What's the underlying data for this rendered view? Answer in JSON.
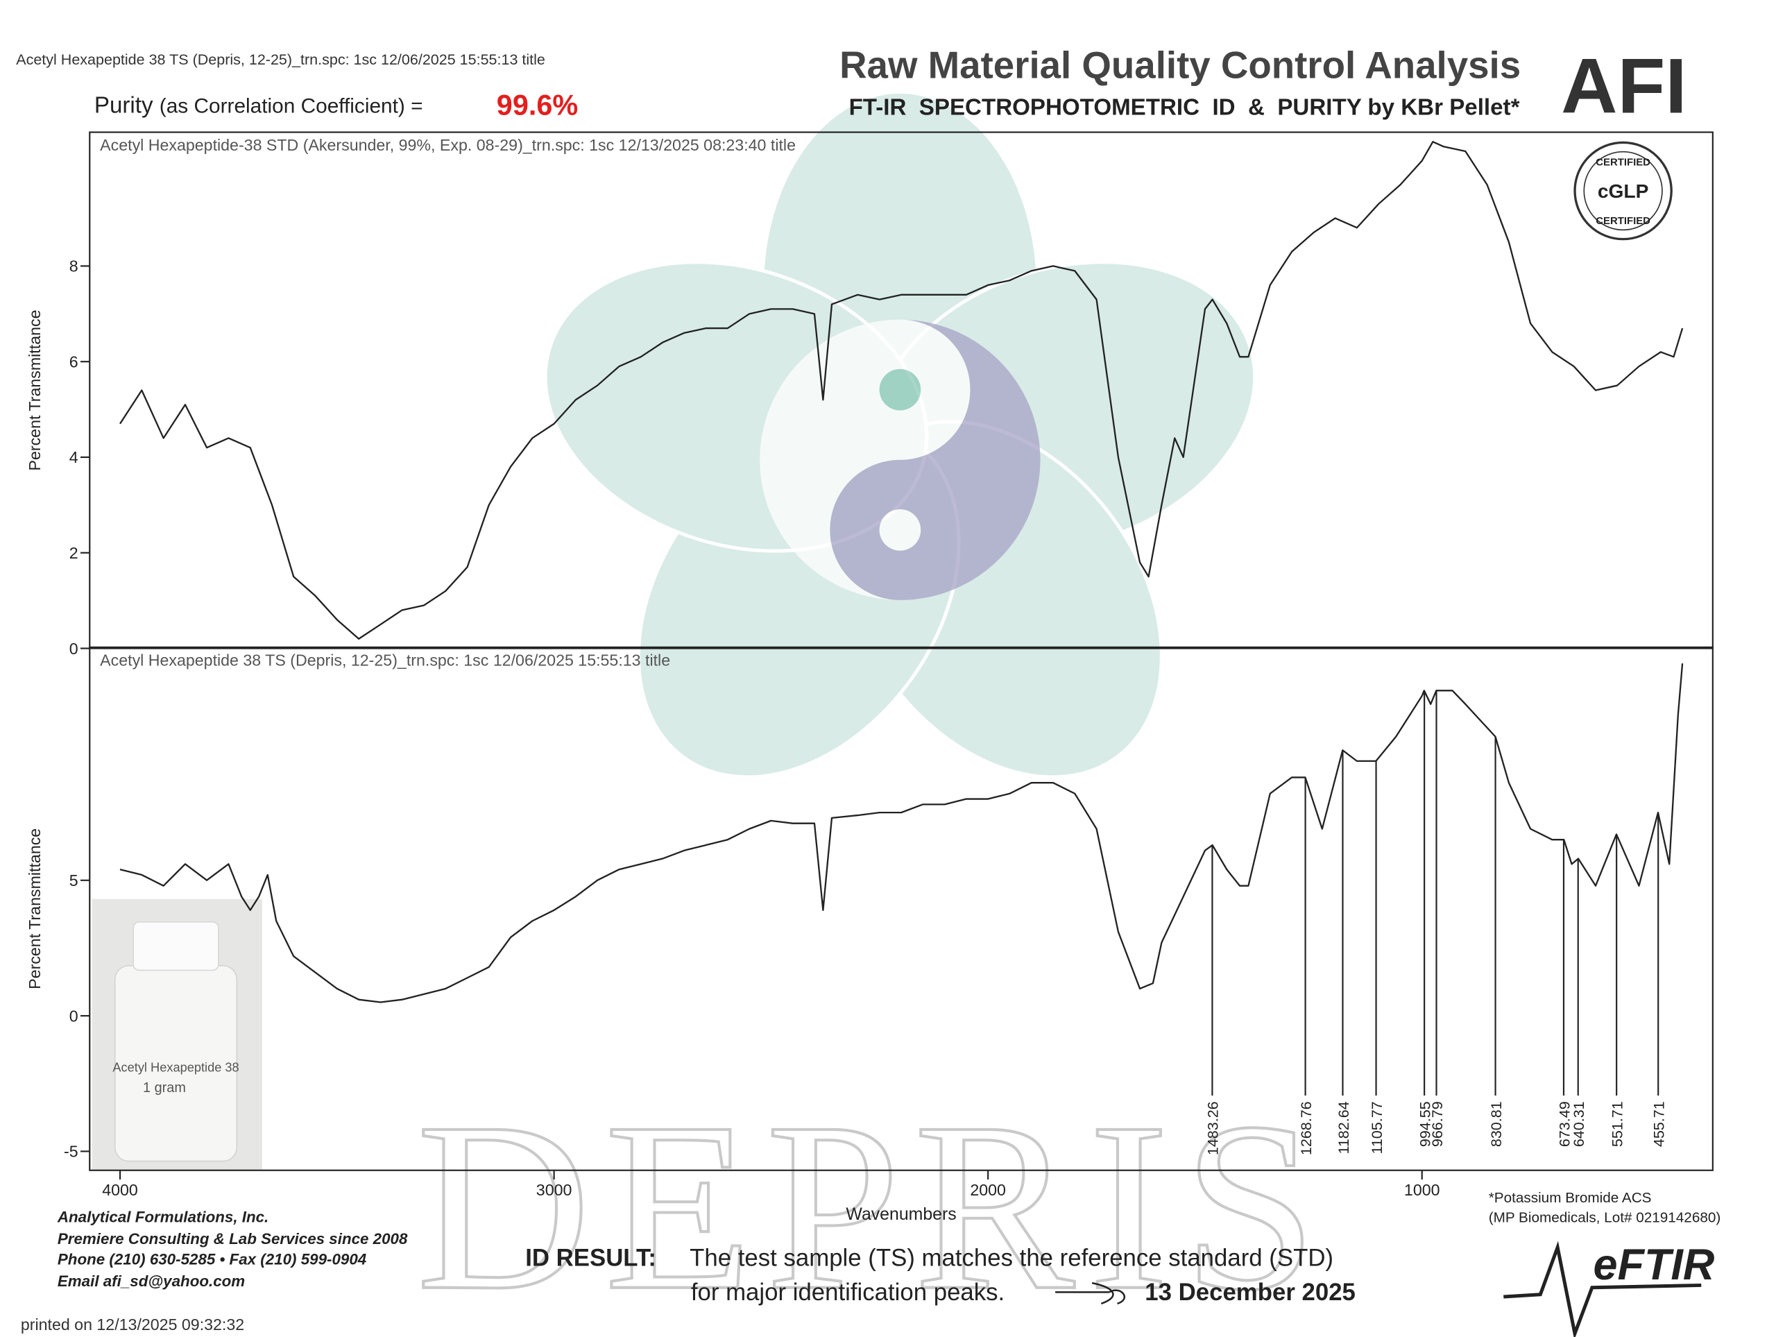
{
  "header": {
    "file_line": "Acetyl Hexapeptide 38 TS (Depris, 12-25)_trn.spc: 1sc 12/06/2025 15:55:13 title",
    "purity_label": "Purity",
    "purity_note": "(as Correlation Coefficient) =",
    "purity_value": "99.6%",
    "title": "Raw Material Quality Control Analysis",
    "subtitle": "FT-IR  SPECTROPHOTOMETRIC  ID  &  PURITY by KBr Pellet*",
    "logo": "AFI",
    "badge": {
      "top": "CERTIFIED",
      "center": "cGLP",
      "bottom": "CERTIFIED"
    }
  },
  "chart_data": [
    {
      "type": "line",
      "title": "Acetyl Hexapeptide-38 STD (Akersunder, 99%, Exp. 08-29)_trn.spc: 1sc 12/13/2025 08:23:40 title",
      "ylabel": "Percent Transmittance",
      "color": "#222",
      "xlim": [
        4070,
        330
      ],
      "ylim": [
        0,
        10.8
      ],
      "yticks": [
        0,
        2,
        4,
        6,
        8
      ],
      "x": [
        4000,
        3950,
        3900,
        3850,
        3800,
        3750,
        3700,
        3650,
        3600,
        3550,
        3500,
        3450,
        3400,
        3350,
        3300,
        3250,
        3200,
        3150,
        3100,
        3050,
        3000,
        2950,
        2900,
        2850,
        2800,
        2750,
        2700,
        2650,
        2600,
        2550,
        2500,
        2450,
        2400,
        2380,
        2360,
        2300,
        2250,
        2200,
        2150,
        2100,
        2050,
        2000,
        1950,
        1900,
        1850,
        1800,
        1750,
        1700,
        1650,
        1630,
        1600,
        1570,
        1550,
        1500,
        1483,
        1450,
        1420,
        1400,
        1350,
        1300,
        1250,
        1200,
        1150,
        1100,
        1050,
        1000,
        975,
        950,
        900,
        850,
        800,
        750,
        700,
        650,
        600,
        550,
        500,
        450,
        420,
        400
      ],
      "values": [
        4.7,
        5.4,
        4.4,
        5.1,
        4.2,
        4.4,
        4.2,
        3.0,
        1.5,
        1.1,
        0.6,
        0.2,
        0.5,
        0.8,
        0.9,
        1.2,
        1.7,
        3.0,
        3.8,
        4.4,
        4.7,
        5.2,
        5.5,
        5.9,
        6.1,
        6.4,
        6.6,
        6.7,
        6.7,
        7.0,
        7.1,
        7.1,
        7.0,
        5.2,
        7.2,
        7.4,
        7.3,
        7.4,
        7.4,
        7.4,
        7.4,
        7.6,
        7.7,
        7.9,
        8.0,
        7.9,
        7.3,
        4.0,
        1.8,
        1.5,
        3.0,
        4.4,
        4.0,
        7.1,
        7.3,
        6.8,
        6.1,
        6.1,
        7.6,
        8.3,
        8.7,
        9.0,
        8.8,
        9.3,
        9.7,
        10.2,
        10.6,
        10.5,
        10.4,
        9.7,
        8.5,
        6.8,
        6.2,
        5.9,
        5.4,
        5.5,
        5.9,
        6.2,
        6.1,
        6.7
      ]
    },
    {
      "type": "line",
      "title": "Acetyl Hexapeptide 38 TS (Depris, 12-25)_trn.spc: 1sc 12/06/2025 15:55:13 title",
      "ylabel": "Percent Transmittance",
      "xlabel": "Wavenumbers",
      "color": "#222",
      "xlim": [
        4070,
        330
      ],
      "ylim": [
        -5.7,
        13.6
      ],
      "yticks": [
        -5,
        0,
        5
      ],
      "xticks": [
        4000,
        3000,
        2000,
        1000
      ],
      "x": [
        4000,
        3950,
        3900,
        3850,
        3800,
        3750,
        3720,
        3700,
        3680,
        3660,
        3640,
        3600,
        3550,
        3500,
        3450,
        3400,
        3350,
        3300,
        3250,
        3200,
        3150,
        3100,
        3050,
        3000,
        2950,
        2900,
        2850,
        2800,
        2750,
        2700,
        2650,
        2600,
        2550,
        2500,
        2450,
        2400,
        2380,
        2360,
        2300,
        2250,
        2200,
        2150,
        2100,
        2050,
        2000,
        1950,
        1900,
        1850,
        1800,
        1750,
        1700,
        1650,
        1620,
        1600,
        1550,
        1500,
        1483,
        1450,
        1420,
        1400,
        1350,
        1300,
        1269,
        1230,
        1183,
        1150,
        1106,
        1060,
        1000,
        995,
        980,
        967,
        930,
        900,
        831,
        800,
        750,
        700,
        673,
        655,
        640,
        600,
        552,
        500,
        456,
        430,
        410,
        400
      ],
      "values": [
        5.4,
        5.2,
        4.8,
        5.6,
        5.0,
        5.6,
        4.4,
        3.9,
        4.4,
        5.2,
        3.5,
        2.2,
        1.6,
        1.0,
        0.6,
        0.5,
        0.6,
        0.8,
        1.0,
        1.4,
        1.8,
        2.9,
        3.5,
        3.9,
        4.4,
        5.0,
        5.4,
        5.6,
        5.8,
        6.1,
        6.3,
        6.5,
        6.9,
        7.2,
        7.1,
        7.1,
        3.9,
        7.3,
        7.4,
        7.5,
        7.5,
        7.8,
        7.8,
        8.0,
        8.0,
        8.2,
        8.6,
        8.6,
        8.2,
        6.9,
        3.1,
        1.0,
        1.2,
        2.7,
        4.4,
        6.1,
        6.3,
        5.4,
        4.8,
        4.8,
        8.2,
        8.8,
        8.8,
        6.9,
        9.8,
        9.4,
        9.4,
        10.3,
        11.8,
        12.0,
        11.5,
        12.0,
        12.0,
        11.5,
        10.3,
        8.6,
        6.9,
        6.5,
        6.5,
        5.6,
        5.8,
        4.8,
        6.7,
        4.8,
        7.5,
        5.6,
        11.1,
        13.0
      ],
      "peaks": [
        1483.26,
        1268.76,
        1182.64,
        1105.77,
        994.55,
        966.79,
        830.81,
        673.49,
        640.31,
        551.71,
        455.71
      ]
    }
  ],
  "photo": {
    "label": "Acetyl Hexapeptide 38",
    "amount": "1 gram"
  },
  "watermark": "DEPRIS",
  "footer": {
    "company": [
      "Analytical Formulations, Inc.",
      "Premiere Consulting & Lab Services since 2008",
      "Phone (210) 630-5285  •  Fax (210) 599-0904",
      "Email  afi_sd@yahoo.com"
    ],
    "printed": "printed on 12/13/2025 09:32:32",
    "result_label": "ID RESULT:",
    "result_line1": "The test sample (TS) matches the reference standard (STD)",
    "result_line2": "for major identification peaks.",
    "result_date": "13 December 2025",
    "kbr_note": [
      "*Potassium Bromide ACS",
      "(MP Biomedicals, Lot# 0219142680)"
    ],
    "brand": "eFTIR"
  }
}
